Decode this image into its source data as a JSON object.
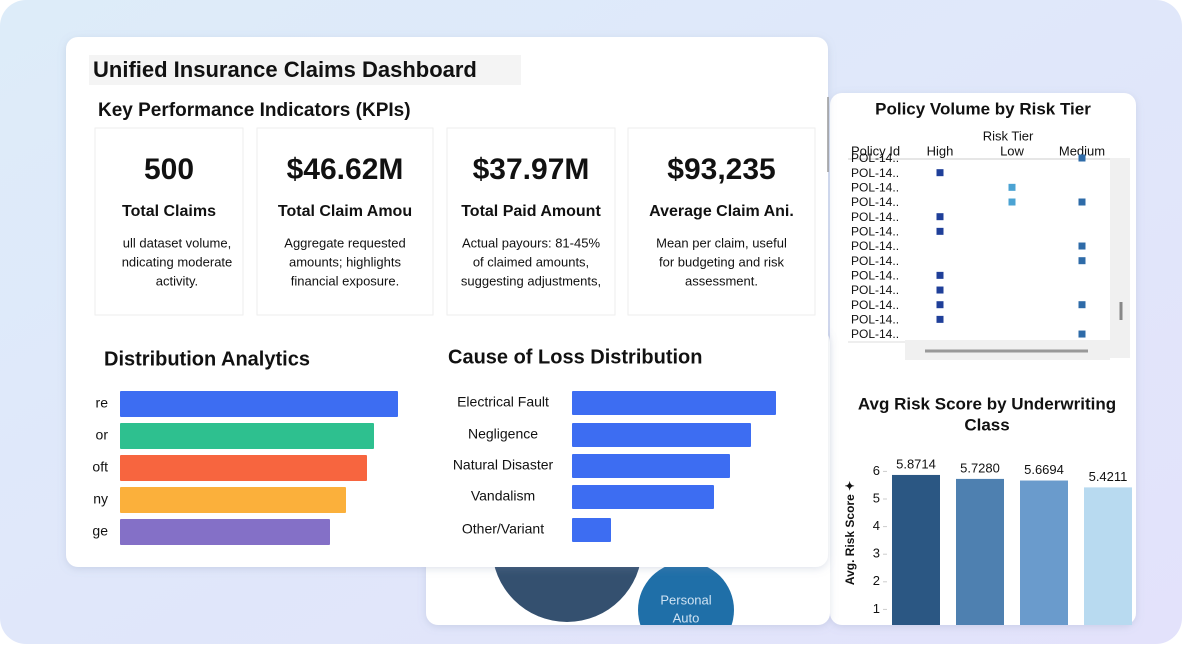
{
  "dashboard_title": "Unified Insurance Claims Dashboard",
  "kpi_title": "Key Performance Indicators (KPIs)",
  "kpis": [
    {
      "value": "500",
      "label": "Total Claims",
      "description": [
        "ull dataset volume,",
        "ndicating moderate",
        "activity."
      ]
    },
    {
      "value": "$46.62M",
      "label": "Total Claim Amou",
      "description": [
        "Aggregate requested",
        "amounts; highlights",
        "financial exposure."
      ]
    },
    {
      "value": "$37.97M",
      "label": "Total Paid Amount",
      "description": [
        "Actual payours: 81-45%",
        "of claimed amounts,",
        "suggesting adjustments,"
      ]
    },
    {
      "value": "$93,235",
      "label": "Average Claim Ani.",
      "description": [
        "Mean per claim, useful",
        "for budgeting and risk",
        "assessment."
      ]
    }
  ],
  "chart_data": [
    {
      "type": "hbar",
      "title": "Distribution Analytics",
      "categories": [
        "re",
        "or",
        "oft",
        "ny",
        "ge"
      ],
      "values": [
        278,
        254,
        247,
        226,
        210
      ],
      "colors": [
        "#3d6df2",
        "#2ec08f",
        "#f7653f",
        "#fbb03b",
        "#8470c7"
      ]
    },
    {
      "type": "hbar",
      "title": "Cause of Loss Distribution",
      "categories": [
        "Electrical Fault",
        "Negligence",
        "Natural Disaster",
        "Vandalism",
        "Other/Variant"
      ],
      "values": [
        204,
        179,
        158,
        142,
        39
      ],
      "colors": [
        "#3d6df2",
        "#3d6df2",
        "#3d6df2",
        "#3d6df2",
        "#3d6df2"
      ]
    },
    {
      "type": "matrix",
      "title": "Policy Volume by Risk Tier",
      "column_header": "Risk Tier",
      "row_header": "Policy Id",
      "columns": [
        "High",
        "Low",
        "Medium"
      ],
      "colors": [
        "#1f3f99",
        "#4ba3d3",
        "#2e6ba8"
      ],
      "rows": [
        "POL-14..",
        "POL-14..",
        "POL-14..",
        "POL-14..",
        "POL-14..",
        "POL-14..",
        "POL-14..",
        "POL-14..",
        "POL-14..",
        "POL-14..",
        "POL-14..",
        "POL-14..",
        "POL-14.."
      ],
      "values": [
        [
          0,
          0,
          1
        ],
        [
          1,
          0,
          0
        ],
        [
          0,
          1,
          0
        ],
        [
          0,
          1,
          1
        ],
        [
          1,
          0,
          0
        ],
        [
          1,
          0,
          0
        ],
        [
          0,
          0,
          1
        ],
        [
          0,
          0,
          1
        ],
        [
          1,
          0,
          0
        ],
        [
          1,
          0,
          0
        ],
        [
          1,
          0,
          1
        ],
        [
          1,
          0,
          0
        ],
        [
          0,
          0,
          1
        ]
      ]
    },
    {
      "type": "bar",
      "title": [
        "Avg Risk Score by Underwriting",
        "Class"
      ],
      "y_label": "Avg. Risk Score ✦",
      "categories": [
        null,
        null,
        null,
        null
      ],
      "values": [
        5.8714,
        5.728,
        5.6694,
        5.4211
      ],
      "value_labels": [
        "5.8714",
        "5.7280",
        "5.6694",
        "5.4211"
      ],
      "colors": [
        "#2b5783",
        "#4e80b0",
        "#6a9bcc",
        "#b8daf0"
      ],
      "ylim": [
        0,
        6.5
      ],
      "yticks": [
        1,
        2,
        3,
        4,
        5,
        6
      ]
    },
    {
      "type": "bubble",
      "labels": [
        null,
        [
          "Personal",
          "Auto"
        ]
      ],
      "colors": [
        "#34506f",
        "#1f6fa8"
      ]
    }
  ]
}
